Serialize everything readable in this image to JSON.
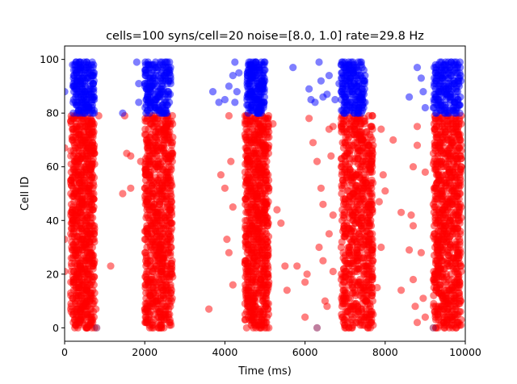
{
  "chart_data": {
    "type": "scatter",
    "title": "cells=100 syns/cell=20 noise=[8.0, 1.0] rate=29.8 Hz",
    "xlabel": "Time (ms)",
    "ylabel": "Cell ID",
    "xlim": [
      0,
      10000
    ],
    "ylim": [
      -5,
      105
    ],
    "xticks": [
      0,
      2000,
      4000,
      6000,
      8000,
      10000
    ],
    "yticks": [
      0,
      20,
      40,
      60,
      80,
      100
    ],
    "grid": false,
    "legend": "none",
    "colors": {
      "excitatory": "#ff0000",
      "inhibitory": "#0000ff"
    },
    "series": [
      {
        "color": "#ff0000",
        "cell_range": [
          0,
          79
        ],
        "burst_intervals_ms": [
          [
            150,
            750
          ],
          [
            2000,
            2700
          ],
          [
            4500,
            5100
          ],
          [
            6900,
            7700
          ],
          [
            9200,
            9900
          ]
        ],
        "scattered_points": [
          [
            0,
            67
          ],
          [
            0,
            33
          ],
          [
            0,
            21
          ],
          [
            850,
            79
          ],
          [
            780,
            7
          ],
          [
            700,
            3
          ],
          [
            1150,
            23
          ],
          [
            1450,
            50
          ],
          [
            1500,
            79
          ],
          [
            1550,
            65
          ],
          [
            1650,
            64
          ],
          [
            1650,
            52
          ],
          [
            1900,
            62
          ],
          [
            3600,
            7
          ],
          [
            3900,
            57
          ],
          [
            4000,
            52
          ],
          [
            4100,
            79
          ],
          [
            4150,
            62
          ],
          [
            4200,
            45
          ],
          [
            4100,
            28
          ],
          [
            4200,
            16
          ],
          [
            4050,
            33
          ],
          [
            5200,
            76
          ],
          [
            5300,
            44
          ],
          [
            5400,
            39
          ],
          [
            5500,
            23
          ],
          [
            5550,
            14
          ],
          [
            5800,
            23
          ],
          [
            6000,
            17
          ],
          [
            6000,
            4
          ],
          [
            6050,
            20
          ],
          [
            6100,
            78
          ],
          [
            6200,
            69
          ],
          [
            6300,
            62
          ],
          [
            6400,
            52
          ],
          [
            6450,
            46
          ],
          [
            6350,
            30
          ],
          [
            6450,
            25
          ],
          [
            6500,
            10
          ],
          [
            6600,
            74
          ],
          [
            6700,
            75
          ],
          [
            6650,
            64
          ],
          [
            6700,
            42
          ],
          [
            6600,
            35
          ],
          [
            6700,
            21
          ],
          [
            6550,
            8
          ],
          [
            7900,
            74
          ],
          [
            7950,
            57
          ],
          [
            8000,
            51
          ],
          [
            7850,
            47
          ],
          [
            7900,
            30
          ],
          [
            7800,
            15
          ],
          [
            7700,
            5
          ],
          [
            8200,
            70
          ],
          [
            8400,
            43
          ],
          [
            8400,
            14
          ],
          [
            8650,
            42
          ],
          [
            8700,
            38
          ],
          [
            8700,
            60
          ],
          [
            8800,
            75
          ],
          [
            8800,
            68
          ],
          [
            8700,
            18
          ],
          [
            8750,
            8
          ],
          [
            8800,
            2
          ],
          [
            8900,
            28
          ],
          [
            8950,
            11
          ],
          [
            9000,
            4
          ],
          [
            8600,
            29
          ],
          [
            9000,
            58
          ]
        ]
      },
      {
        "color": "#0000ff",
        "cell_range": [
          80,
          99
        ],
        "burst_intervals_ms": [
          [
            200,
            750
          ],
          [
            2000,
            2650
          ],
          [
            4550,
            5000
          ],
          [
            6900,
            7500
          ],
          [
            9200,
            9900
          ]
        ],
        "scattered_points": [
          [
            0,
            88
          ],
          [
            1450,
            80
          ],
          [
            1800,
            99
          ],
          [
            1850,
            91
          ],
          [
            1850,
            84
          ],
          [
            3700,
            88
          ],
          [
            3850,
            84
          ],
          [
            4000,
            85
          ],
          [
            4100,
            90
          ],
          [
            4200,
            94
          ],
          [
            4250,
            99
          ],
          [
            4300,
            88
          ],
          [
            4350,
            95
          ],
          [
            4250,
            84
          ],
          [
            5700,
            97
          ],
          [
            6100,
            89
          ],
          [
            6150,
            85
          ],
          [
            6250,
            84
          ],
          [
            6350,
            99
          ],
          [
            6400,
            92
          ],
          [
            6450,
            86
          ],
          [
            6600,
            94
          ],
          [
            6550,
            87
          ],
          [
            6850,
            91
          ],
          [
            6750,
            85
          ],
          [
            8600,
            86
          ],
          [
            8800,
            97
          ],
          [
            8900,
            93
          ],
          [
            9000,
            82
          ],
          [
            8950,
            88
          ]
        ]
      },
      {
        "color": "#800040",
        "cell_range": [
          0,
          0
        ],
        "burst_intervals_ms": [],
        "scattered_points": [
          [
            6300,
            0
          ],
          [
            800,
            0
          ],
          [
            9200,
            0
          ]
        ]
      }
    ]
  }
}
